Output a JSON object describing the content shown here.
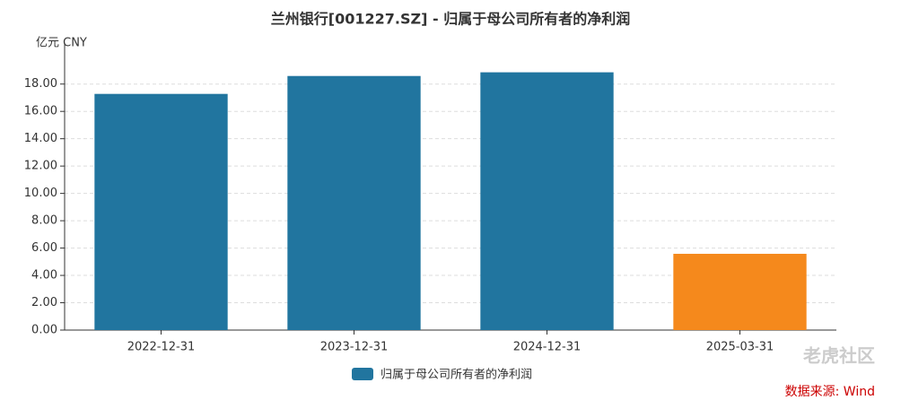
{
  "chart_data": {
    "type": "bar",
    "title": "兰州银行[001227.SZ] - 归属于母公司所有者的净利润",
    "unit_label": "亿元  CNY",
    "categories": [
      "2022-12-31",
      "2023-12-31",
      "2024-12-31",
      "2025-03-31"
    ],
    "series": [
      {
        "name": "归属于母公司所有者的净利润",
        "color": "#21759f",
        "values": [
          17.28,
          18.59,
          18.86,
          5.58
        ],
        "colors": [
          "#21759f",
          "#21759f",
          "#21759f",
          "#f5891c"
        ]
      }
    ],
    "ylim": [
      0,
      21
    ],
    "yticks": [
      {
        "value": 0,
        "label": "0.00"
      },
      {
        "value": 2,
        "label": "2.00"
      },
      {
        "value": 4,
        "label": "4.00"
      },
      {
        "value": 6,
        "label": "6.00"
      },
      {
        "value": 8,
        "label": "8.00"
      },
      {
        "value": 10,
        "label": "10.00"
      },
      {
        "value": 12,
        "label": "12.00"
      },
      {
        "value": 14,
        "label": "14.00"
      },
      {
        "value": 16,
        "label": "16.00"
      },
      {
        "value": 18,
        "label": "18.00"
      }
    ],
    "grid": true,
    "source": "数据来源: Wind",
    "watermark": "老虎社区"
  }
}
